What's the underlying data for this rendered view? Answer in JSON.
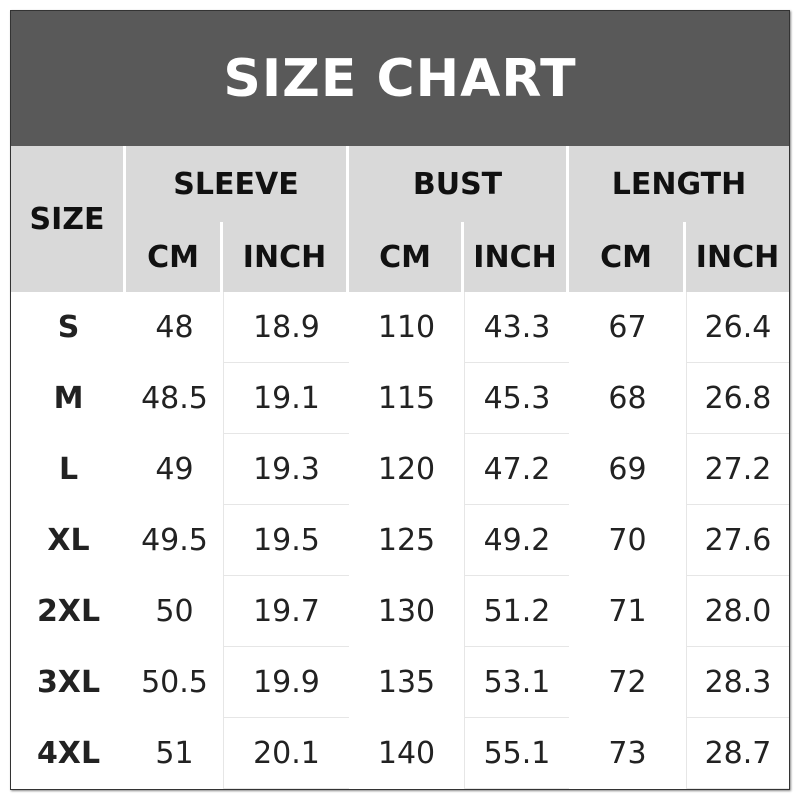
{
  "title": "SIZE CHART",
  "headers": {
    "size": "SIZE",
    "groups": [
      "SLEEVE",
      "BUST",
      "LENGTH"
    ],
    "units": [
      "CM",
      "INCH",
      "CM",
      "INCH",
      "CM",
      "INCH"
    ]
  },
  "rows": [
    [
      "S",
      "48",
      "18.9",
      "110",
      "43.3",
      "67",
      "26.4"
    ],
    [
      "M",
      "48.5",
      "19.1",
      "115",
      "45.3",
      "68",
      "26.8"
    ],
    [
      "L",
      "49",
      "19.3",
      "120",
      "47.2",
      "69",
      "27.2"
    ],
    [
      "XL",
      "49.5",
      "19.5",
      "125",
      "49.2",
      "70",
      "27.6"
    ],
    [
      "2XL",
      "50",
      "19.7",
      "130",
      "51.2",
      "71",
      "28.0"
    ],
    [
      "3XL",
      "50.5",
      "19.9",
      "135",
      "53.1",
      "72",
      "28.3"
    ],
    [
      "4XL",
      "51",
      "20.1",
      "140",
      "55.1",
      "73",
      "28.7"
    ]
  ],
  "colors": {
    "title_bg": "#595959",
    "header_bg": "#d9d9d9"
  }
}
